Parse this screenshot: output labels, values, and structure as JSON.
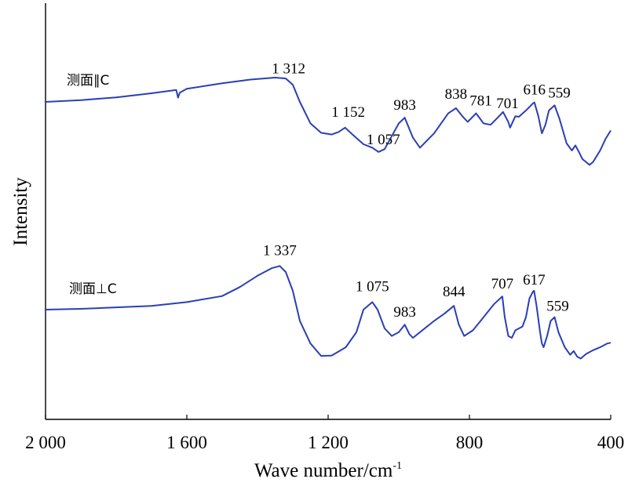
{
  "chart_data": {
    "type": "line",
    "xlabel": "Wave number/cm",
    "xlabel_sup": "-1",
    "ylabel": "Intensity",
    "xlim": [
      2000,
      400
    ],
    "x_reversed": true,
    "x_ticks": [
      2000,
      1600,
      1200,
      800,
      400
    ],
    "x_tick_labels": [
      "2 000",
      "1 600",
      "1 200",
      "800",
      "400"
    ],
    "y_ticks": [],
    "grid": false,
    "legend": "none",
    "line_color": "#2a3fb5",
    "series": [
      {
        "name": "测面∥C",
        "points": [
          [
            2000,
            3.3
          ],
          [
            1900,
            3.36
          ],
          [
            1800,
            3.46
          ],
          [
            1700,
            3.6
          ],
          [
            1640,
            3.7
          ],
          [
            1630,
            3.72
          ],
          [
            1625,
            3.45
          ],
          [
            1620,
            3.62
          ],
          [
            1600,
            3.76
          ],
          [
            1500,
            3.95
          ],
          [
            1420,
            4.08
          ],
          [
            1350,
            4.15
          ],
          [
            1320,
            4.12
          ],
          [
            1300,
            3.9
          ],
          [
            1280,
            3.3
          ],
          [
            1250,
            2.55
          ],
          [
            1220,
            2.22
          ],
          [
            1190,
            2.16
          ],
          [
            1170,
            2.25
          ],
          [
            1152,
            2.4
          ],
          [
            1130,
            2.15
          ],
          [
            1100,
            1.82
          ],
          [
            1075,
            1.7
          ],
          [
            1057,
            1.55
          ],
          [
            1040,
            1.65
          ],
          [
            1020,
            2.1
          ],
          [
            1000,
            2.55
          ],
          [
            983,
            2.75
          ],
          [
            960,
            2.05
          ],
          [
            940,
            1.7
          ],
          [
            900,
            2.2
          ],
          [
            860,
            2.9
          ],
          [
            838,
            3.08
          ],
          [
            820,
            2.8
          ],
          [
            805,
            2.6
          ],
          [
            781,
            2.9
          ],
          [
            760,
            2.55
          ],
          [
            740,
            2.5
          ],
          [
            720,
            2.75
          ],
          [
            705,
            2.95
          ],
          [
            690,
            2.6
          ],
          [
            685,
            2.4
          ],
          [
            670,
            2.8
          ],
          [
            660,
            2.78
          ],
          [
            640,
            3.0
          ],
          [
            620,
            3.25
          ],
          [
            616,
            3.28
          ],
          [
            605,
            2.8
          ],
          [
            595,
            2.2
          ],
          [
            585,
            2.5
          ],
          [
            575,
            3.0
          ],
          [
            559,
            3.18
          ],
          [
            545,
            2.7
          ],
          [
            525,
            1.85
          ],
          [
            510,
            1.6
          ],
          [
            500,
            1.78
          ],
          [
            490,
            1.55
          ],
          [
            480,
            1.3
          ],
          [
            470,
            1.2
          ],
          [
            460,
            1.1
          ],
          [
            450,
            1.2
          ],
          [
            430,
            1.6
          ],
          [
            415,
            2.0
          ],
          [
            400,
            2.3
          ]
        ]
      },
      {
        "name": "测面⊥C",
        "points": [
          [
            2000,
            0.0
          ],
          [
            1900,
            0.02
          ],
          [
            1800,
            0.06
          ],
          [
            1700,
            0.1
          ],
          [
            1600,
            0.2
          ],
          [
            1500,
            0.36
          ],
          [
            1450,
            0.6
          ],
          [
            1400,
            0.9
          ],
          [
            1360,
            1.1
          ],
          [
            1337,
            1.16
          ],
          [
            1320,
            1.0
          ],
          [
            1300,
            0.5
          ],
          [
            1280,
            -0.3
          ],
          [
            1250,
            -0.9
          ],
          [
            1220,
            -1.23
          ],
          [
            1190,
            -1.22
          ],
          [
            1150,
            -1.0
          ],
          [
            1120,
            -0.6
          ],
          [
            1100,
            0.0
          ],
          [
            1075,
            0.2
          ],
          [
            1060,
            0.0
          ],
          [
            1040,
            -0.5
          ],
          [
            1020,
            -0.7
          ],
          [
            1000,
            -0.6
          ],
          [
            983,
            -0.4
          ],
          [
            970,
            -0.65
          ],
          [
            960,
            -0.75
          ],
          [
            940,
            -0.6
          ],
          [
            900,
            -0.3
          ],
          [
            870,
            -0.1
          ],
          [
            844,
            0.1
          ],
          [
            830,
            -0.4
          ],
          [
            815,
            -0.7
          ],
          [
            790,
            -0.55
          ],
          [
            760,
            -0.2
          ],
          [
            730,
            0.15
          ],
          [
            707,
            0.35
          ],
          [
            700,
            -0.2
          ],
          [
            690,
            -0.7
          ],
          [
            680,
            -0.75
          ],
          [
            670,
            -0.55
          ],
          [
            650,
            -0.45
          ],
          [
            640,
            -0.2
          ],
          [
            630,
            0.3
          ],
          [
            620,
            0.48
          ],
          [
            617,
            0.5
          ],
          [
            610,
            0.1
          ],
          [
            600,
            -0.6
          ],
          [
            595,
            -0.9
          ],
          [
            590,
            -1.0
          ],
          [
            580,
            -0.7
          ],
          [
            570,
            -0.3
          ],
          [
            559,
            -0.2
          ],
          [
            548,
            -0.6
          ],
          [
            530,
            -1.0
          ],
          [
            515,
            -1.2
          ],
          [
            505,
            -1.1
          ],
          [
            495,
            -1.25
          ],
          [
            485,
            -1.3
          ],
          [
            470,
            -1.18
          ],
          [
            450,
            -1.08
          ],
          [
            430,
            -1.0
          ],
          [
            410,
            -0.9
          ],
          [
            400,
            -0.88
          ]
        ]
      }
    ],
    "annotations": [
      {
        "text": "1 312",
        "x": 1312,
        "series": 0
      },
      {
        "text": "1 152",
        "x": 1152,
        "series": 0
      },
      {
        "text": "1 057",
        "x": 1057,
        "series": 0
      },
      {
        "text": "983",
        "x": 983,
        "series": 0
      },
      {
        "text": "838",
        "x": 838,
        "series": 0
      },
      {
        "text": "781",
        "x": 781,
        "series": 0
      },
      {
        "text": "701",
        "x": 701,
        "series": 0
      },
      {
        "text": "616",
        "x": 616,
        "series": 0
      },
      {
        "text": "559",
        "x": 559,
        "series": 0
      },
      {
        "text": "1 337",
        "x": 1337,
        "series": 1
      },
      {
        "text": "1 075",
        "x": 1075,
        "series": 1
      },
      {
        "text": "983",
        "x": 983,
        "series": 1
      },
      {
        "text": "844",
        "x": 844,
        "series": 1
      },
      {
        "text": "707",
        "x": 707,
        "series": 1
      },
      {
        "text": "617",
        "x": 617,
        "series": 1
      },
      {
        "text": "559",
        "x": 559,
        "series": 1
      }
    ]
  }
}
